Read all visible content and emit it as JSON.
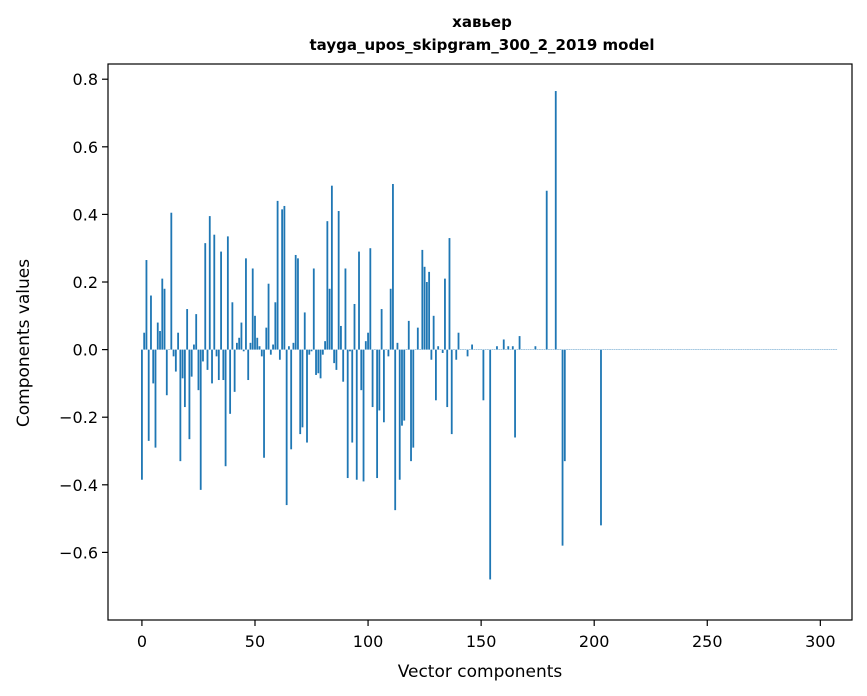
{
  "chart_data": {
    "type": "bar",
    "title_line1": "хавьер",
    "title_line2": "tayga_upos_skipgram_300_2_2019 model",
    "xlabel": "Vector components",
    "ylabel": "Components values",
    "xlim": [
      -15,
      314
    ],
    "ylim": [
      -0.8,
      0.845
    ],
    "x_ticks": [
      {
        "value": 0,
        "label": "0"
      },
      {
        "value": 50,
        "label": "50"
      },
      {
        "value": 100,
        "label": "100"
      },
      {
        "value": 150,
        "label": "150"
      },
      {
        "value": 200,
        "label": "200"
      },
      {
        "value": 250,
        "label": "250"
      },
      {
        "value": 300,
        "label": "300"
      }
    ],
    "y_ticks": [
      {
        "value": -0.6,
        "label": "−0.6"
      },
      {
        "value": -0.4,
        "label": "−0.4"
      },
      {
        "value": -0.2,
        "label": "−0.2"
      },
      {
        "value": 0.0,
        "label": "0.0"
      },
      {
        "value": 0.2,
        "label": "0.2"
      },
      {
        "value": 0.4,
        "label": "0.4"
      },
      {
        "value": 0.6,
        "label": "0.6"
      },
      {
        "value": 0.8,
        "label": "0.8"
      }
    ],
    "bar_color": "#1f77b4",
    "values": [
      -0.385,
      0.05,
      0.265,
      -0.27,
      0.16,
      -0.1,
      -0.29,
      0.08,
      0.055,
      0.21,
      0.18,
      -0.135,
      0.0,
      0.405,
      -0.02,
      -0.065,
      0.05,
      -0.33,
      -0.085,
      -0.17,
      0.12,
      -0.265,
      -0.08,
      0.015,
      0.105,
      -0.12,
      -0.415,
      -0.035,
      0.315,
      -0.06,
      0.395,
      -0.1,
      0.34,
      -0.02,
      -0.09,
      0.29,
      -0.09,
      -0.345,
      0.335,
      -0.19,
      0.14,
      -0.125,
      0.02,
      0.035,
      0.08,
      -0.005,
      0.27,
      -0.09,
      0.02,
      0.24,
      0.1,
      0.035,
      0.01,
      -0.02,
      -0.32,
      0.065,
      0.195,
      -0.015,
      0.015,
      0.14,
      0.44,
      -0.03,
      0.415,
      0.425,
      -0.46,
      0.01,
      -0.295,
      0.02,
      0.28,
      0.27,
      -0.25,
      -0.23,
      0.11,
      -0.275,
      -0.015,
      -0.005,
      0.24,
      -0.075,
      -0.07,
      -0.085,
      -0.015,
      0.025,
      0.38,
      0.18,
      0.485,
      -0.04,
      -0.06,
      0.41,
      0.07,
      -0.095,
      0.24,
      -0.38,
      -0.005,
      -0.275,
      0.135,
      -0.385,
      0.29,
      -0.12,
      -0.39,
      0.025,
      0.05,
      0.3,
      -0.17,
      0.0,
      -0.38,
      -0.18,
      0.12,
      -0.215,
      0.0,
      -0.02,
      0.18,
      0.49,
      -0.475,
      0.02,
      -0.385,
      -0.225,
      -0.21,
      0.0,
      0.085,
      -0.33,
      -0.29,
      0.0,
      0.065,
      0.0,
      0.295,
      0.245,
      0.2,
      0.23,
      -0.03,
      0.1,
      -0.15,
      0.01,
      0.0,
      -0.01,
      0.21,
      -0.17,
      0.33,
      -0.25,
      0.0,
      -0.03,
      0.05,
      0.0,
      0.0,
      0.0,
      -0.02,
      0.0,
      0.015,
      0.0,
      0.0,
      0.0,
      0.0,
      -0.15,
      0.0,
      0.0,
      -0.68,
      0.0,
      0.0,
      0.01,
      0.0,
      0.0,
      0.03,
      0.0,
      0.01,
      0.0,
      0.01,
      -0.26,
      0.0,
      0.04,
      0.0,
      0.0,
      0.0,
      0.0,
      0.0,
      0.0,
      0.01,
      0.0,
      0.0,
      0.0,
      0.0,
      0.47,
      0.0,
      0.0,
      0.0,
      0.765,
      0.0,
      0.0,
      -0.58,
      -0.33,
      0.0,
      0.0,
      0.0,
      0.0,
      0.0,
      0.0,
      0.0,
      0.0,
      0.0,
      0.0,
      0.0,
      0.0,
      0.0,
      0.0,
      0.0,
      -0.52,
      0.0,
      0.0,
      0.0,
      0.0,
      0.0,
      0.0,
      0.0,
      0.0,
      0.0,
      0.0,
      0.0,
      0.0,
      0.0,
      0.0,
      0.0,
      0.0,
      0.0,
      0.0,
      0.0,
      0.0,
      0.0,
      0.0,
      0.0,
      0.0,
      0.0,
      0.0,
      0.0,
      0.0,
      0.0,
      0.0,
      0.0,
      0.0,
      0.0,
      0.0,
      0.0,
      0.0,
      0.0,
      0.0,
      0.0,
      0.0,
      0.0,
      0.0,
      0.0,
      0.0,
      0.0,
      0.0,
      0.0,
      0.0,
      0.0,
      0.0,
      0.0,
      0.0,
      0.0,
      0.0,
      0.0,
      0.0,
      0.0,
      0.0,
      0.0,
      0.0,
      0.0,
      0.0,
      0.0,
      0.0,
      0.0,
      0.0,
      0.0,
      0.0,
      0.0,
      0.0,
      0.0,
      0.0,
      0.0,
      0.0,
      0.0,
      0.0,
      0.0,
      0.0,
      0.0,
      0.0,
      0.0,
      0.0,
      0.0,
      0.0,
      0.0,
      0.0,
      0.0,
      0.0,
      0.0,
      0.0,
      0.0,
      0.0,
      0.0,
      0.0,
      0.0,
      0.0,
      0.0,
      0.0,
      0.0,
      0.0,
      0.0,
      0.0,
      0.0,
      0.0
    ]
  }
}
